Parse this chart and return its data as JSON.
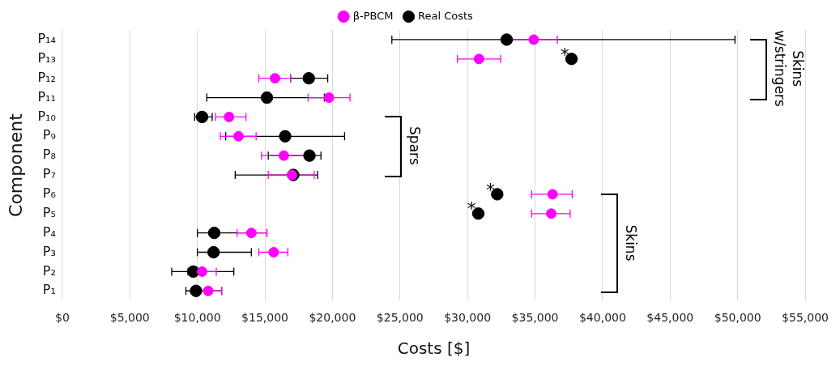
{
  "chart_data": {
    "type": "scatter",
    "xlabel": "Costs [$]",
    "ylabel": "Component",
    "categories": [
      "P₁₄",
      "P₁₃",
      "P₁₂",
      "P₁₁",
      "P₁₀",
      "P₉",
      "P₈",
      "P₇",
      "P₆",
      "P₅",
      "P₄",
      "P₃",
      "P₂",
      "P₁"
    ],
    "series": [
      {
        "name": "Real Costs",
        "color": "#000000",
        "values": [
          32900,
          37700,
          18250,
          15150,
          10350,
          16500,
          18300,
          17100,
          32200,
          30800,
          11250,
          11200,
          9700,
          9900
        ],
        "errors": [
          [
            24400,
            49800
          ],
          null,
          [
            16900,
            19650
          ],
          [
            10700,
            19400
          ],
          [
            9800,
            11100
          ],
          [
            12100,
            20900
          ],
          [
            15250,
            19150
          ],
          [
            12800,
            18900
          ],
          null,
          null,
          [
            10000,
            15150
          ],
          [
            10000,
            14000
          ],
          [
            8100,
            12700
          ],
          [
            9150,
            11800
          ]
        ]
      },
      {
        "name": "β-PBCM",
        "color": "#ff00ff",
        "values": [
          34900,
          30850,
          15750,
          19750,
          12350,
          13050,
          16400,
          17000,
          36300,
          36200,
          14000,
          15650,
          10350,
          10800
        ],
        "errors": [
          [
            33200,
            36650
          ],
          [
            29250,
            32450
          ],
          [
            14550,
            16900
          ],
          [
            18200,
            21300
          ],
          [
            11350,
            13600
          ],
          [
            11700,
            14350
          ],
          [
            14750,
            18000
          ],
          [
            15250,
            18650
          ],
          [
            34750,
            37750
          ],
          [
            34750,
            37600
          ],
          [
            12950,
            15150
          ],
          [
            14550,
            16700
          ],
          [
            9300,
            11400
          ],
          [
            10100,
            11800
          ]
        ]
      }
    ],
    "orientation": "horizontal",
    "xlim": [
      0,
      55000
    ],
    "xticks": [
      {
        "value": 0,
        "label": "$0"
      },
      {
        "value": 5000,
        "label": "$5,000"
      },
      {
        "value": 10000,
        "label": "$10,000"
      },
      {
        "value": 15000,
        "label": "$15,000"
      },
      {
        "value": 20000,
        "label": "$20,000"
      },
      {
        "value": 25000,
        "label": "$25,000"
      },
      {
        "value": 30000,
        "label": "$30,000"
      },
      {
        "value": 35000,
        "label": "$35,000"
      },
      {
        "value": 40000,
        "label": "$40,000"
      },
      {
        "value": 45000,
        "label": "$45,000"
      },
      {
        "value": 50000,
        "label": "$50,000"
      },
      {
        "value": 55000,
        "label": "$55,000"
      }
    ],
    "grid": "x",
    "legend": "top",
    "marker": "circle",
    "annotations": [
      "Skins w/stringers",
      "Spars",
      "Skins",
      {
        "text": "*",
        "x": 37200,
        "y": "P₁₃"
      },
      {
        "text": "*",
        "x": 31700,
        "y": "P₆"
      },
      {
        "text": "*",
        "x": 30300,
        "y": "P₅"
      }
    ]
  }
}
